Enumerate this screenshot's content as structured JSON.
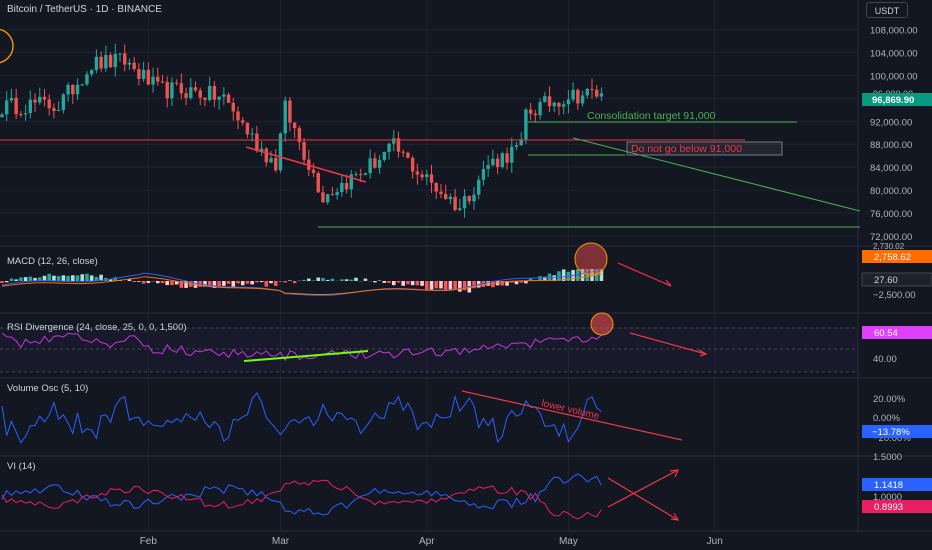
{
  "header": {
    "title": "Bitcoin / TetherUS · 1D · BINANCE",
    "currency": "USDT"
  },
  "colors": {
    "background": "#131722",
    "up": "#26a69a",
    "down": "#ef5350",
    "grid": "#1f2330"
  },
  "chart_data": [
    {
      "type": "candlestick",
      "title": "Bitcoin / TetherUS · 1D · BINANCE",
      "x_labels": [
        "Feb",
        "Mar",
        "Apr",
        "May",
        "Jun"
      ],
      "y_ticks": [
        "108,000.00",
        "104,000.00",
        "100,000.00",
        "92,000.00",
        "88,000.00",
        "84,000.00",
        "80,000.00",
        "76,000.00",
        "72,000.00"
      ],
      "ylim": [
        72000,
        110000
      ],
      "last_price": "96,869.90",
      "hidden_label": "96,000.00",
      "annotations": [
        "Consolidation target 91,000",
        "Do not go below 91,000"
      ],
      "key_closes": [
        [
          "2025-01-01",
          94500
        ],
        [
          "2025-01-08",
          95000
        ],
        [
          "2025-01-13",
          94700
        ],
        [
          "2025-01-20",
          102000
        ],
        [
          "2025-01-27",
          102500
        ],
        [
          "2025-02-03",
          97500
        ],
        [
          "2025-02-10",
          97300
        ],
        [
          "2025-02-17",
          96000
        ],
        [
          "2025-02-24",
          88000
        ],
        [
          "2025-02-28",
          84500
        ],
        [
          "2025-03-02",
          94200
        ],
        [
          "2025-03-10",
          79000
        ],
        [
          "2025-03-18",
          83000
        ],
        [
          "2025-03-25",
          87500
        ],
        [
          "2025-03-31",
          82500
        ],
        [
          "2025-04-08",
          77000
        ],
        [
          "2025-04-14",
          84500
        ],
        [
          "2025-04-21",
          87500
        ],
        [
          "2025-04-22",
          93500
        ],
        [
          "2025-05-01",
          96500
        ],
        [
          "2025-05-08",
          96870
        ]
      ]
    },
    {
      "type": "line",
      "title": "MACD (12, 26, close)",
      "y_ticks": [
        "−2,500.00"
      ],
      "values": [
        "2,758.62",
        "27.60"
      ],
      "hidden_label": "2,730.02"
    },
    {
      "type": "line",
      "title": "RSI Divergence (24, close, 25, 0, 0, 1,500)",
      "y_ticks": [
        "40.00"
      ],
      "value": "60.54"
    },
    {
      "type": "line",
      "title": "Volume Osc (5, 10)",
      "y_ticks": [
        "20.00%",
        "0.00%",
        "−20.00%"
      ],
      "value": "−13.78%",
      "annotations": [
        "lower volume"
      ]
    },
    {
      "type": "line",
      "title": "VI (14)",
      "y_ticks": [
        "1.5000",
        "1.0000"
      ],
      "values": [
        "1.1418",
        "0.8993"
      ]
    }
  ]
}
